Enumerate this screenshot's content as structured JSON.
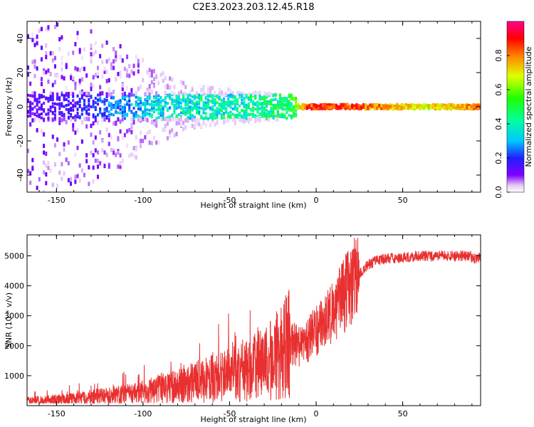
{
  "title": "C2E3.2023.203.12.45.R18",
  "chart_data": [
    {
      "type": "heatmap",
      "title": "C2E3.2023.203.12.45.R18",
      "xlabel": "Height of straight line (km)",
      "ylabel": "Frequency (Hz)",
      "xlim": [
        -167,
        95
      ],
      "ylim": [
        -50,
        50
      ],
      "xticks": [
        -150,
        -100,
        -50,
        0,
        50
      ],
      "yticks": [
        -40,
        -20,
        0,
        20,
        40
      ],
      "colorbar": {
        "label": "Normalized spectral amplitude",
        "range": [
          0,
          1
        ],
        "ticks": [
          0.0,
          0.2,
          0.4,
          0.6,
          0.8
        ]
      },
      "spread_profile": {
        "x": [
          -167,
          -150,
          -130,
          -110,
          -90,
          -70,
          -50,
          -30,
          -15,
          -5,
          20,
          60,
          95
        ],
        "frequency_spread_hz": [
          50,
          50,
          45,
          35,
          20,
          12,
          10,
          8,
          7,
          2,
          2,
          2,
          2
        ],
        "peak_amplitude": [
          0.15,
          0.2,
          0.25,
          0.35,
          0.45,
          0.5,
          0.5,
          0.55,
          0.6,
          0.95,
          0.95,
          0.75,
          0.9
        ]
      }
    },
    {
      "type": "line",
      "xlabel": "Height of straight line (km)",
      "ylabel": "SNR (10 * v/v)",
      "xlim": [
        -167,
        95
      ],
      "ylim": [
        0,
        5700
      ],
      "xticks": [
        -150,
        -100,
        -50,
        0,
        50
      ],
      "yticks": [
        1000,
        2000,
        3000,
        4000,
        5000
      ],
      "series": [
        {
          "name": "SNR",
          "color": "#e83030",
          "x": [
            -167,
            -150,
            -130,
            -110,
            -100,
            -90,
            -80,
            -70,
            -60,
            -50,
            -40,
            -30,
            -20,
            -15,
            -10,
            -5,
            0,
            5,
            10,
            15,
            20,
            25,
            30,
            35,
            40,
            50,
            60,
            70,
            80,
            88,
            92,
            95
          ],
          "y": [
            150,
            200,
            280,
            380,
            450,
            550,
            650,
            800,
            900,
            1000,
            1150,
            1400,
            1800,
            2100,
            2000,
            2200,
            2500,
            2800,
            3200,
            3600,
            4000,
            4400,
            4700,
            4850,
            4900,
            4950,
            5000,
            5000,
            5000,
            5000,
            4900,
            5000
          ]
        }
      ]
    }
  ]
}
